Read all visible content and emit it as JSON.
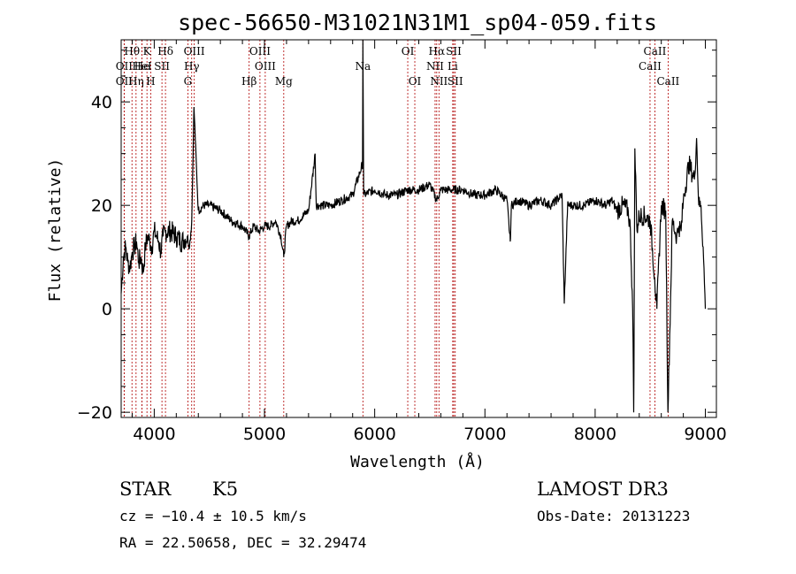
{
  "chart_data": {
    "type": "line",
    "title": "spec-56650-M31021N31M1_sp04-059.fits",
    "xlabel": "Wavelength (Å)",
    "ylabel": "Flux (relative)",
    "xlim": [
      3700,
      9100
    ],
    "ylim": [
      -21,
      52
    ],
    "x_ticks": [
      4000,
      5000,
      6000,
      7000,
      8000,
      9000
    ],
    "y_ticks": [
      -20,
      0,
      20,
      40
    ],
    "grid": false,
    "series": [
      {
        "x": [
          3700,
          3720,
          3740,
          3760,
          3780,
          3800,
          3820,
          3840,
          3860,
          3880,
          3900,
          3920,
          3940,
          3960,
          3980,
          4000,
          4020,
          4040,
          4060,
          4080,
          4100,
          4150,
          4200,
          4250,
          4300,
          4320,
          4340,
          4360,
          4400,
          4450,
          4500,
          4600,
          4700,
          4800,
          4861,
          4900,
          4950,
          5000,
          5050,
          5100,
          5150,
          5175,
          5200,
          5250,
          5300,
          5400,
          5460,
          5470,
          5500,
          5600,
          5700,
          5800,
          5890,
          5893,
          5900,
          6000,
          6100,
          6200,
          6300,
          6400,
          6500,
          6563,
          6600,
          6700,
          6800,
          6900,
          7000,
          7100,
          7200,
          7230,
          7240,
          7300,
          7400,
          7500,
          7600,
          7700,
          7720,
          7750,
          7800,
          7900,
          8000,
          8100,
          8150,
          8200,
          8250,
          8300,
          8320,
          8340,
          8350,
          8360,
          8380,
          8400,
          8450,
          8500,
          8540,
          8560,
          8600,
          8640,
          8660,
          8700,
          8740,
          8760,
          8780,
          8800,
          8850,
          8900,
          8920,
          8940,
          8960,
          8980,
          9000
        ],
        "y": [
          3,
          10,
          12,
          9,
          8,
          11,
          12,
          13,
          9,
          10,
          7,
          12,
          14,
          13,
          12,
          15,
          14,
          13,
          11,
          14,
          15,
          15,
          14,
          13,
          14,
          12,
          17,
          39,
          19,
          20,
          20,
          19,
          17,
          16,
          14,
          16,
          15,
          16,
          16,
          17,
          14,
          10,
          16,
          17,
          17,
          19,
          30,
          20,
          20,
          20,
          21,
          22,
          28,
          52,
          22,
          23,
          22,
          22,
          23,
          23,
          24,
          21,
          23,
          23,
          23,
          22,
          22,
          23,
          21,
          13,
          20,
          21,
          20,
          21,
          20,
          22,
          1,
          20,
          20,
          20,
          21,
          20,
          21,
          19,
          20,
          19,
          15,
          0,
          -20,
          31,
          15,
          18,
          18,
          17,
          6,
          0,
          20,
          19,
          -20,
          17,
          14,
          16,
          15,
          21,
          28,
          25,
          33,
          20,
          20,
          12,
          0
        ]
      }
    ],
    "emission_lines": [
      {
        "label": "Hθ",
        "x": 3798,
        "row": 1
      },
      {
        "label": "OII",
        "x": 3727,
        "row": 2
      },
      {
        "label": "OII",
        "x": 3727,
        "row": 3
      },
      {
        "label": "He",
        "x": 3889,
        "row": 2
      },
      {
        "label": "Hη",
        "x": 3835,
        "row": 3
      },
      {
        "label": "K",
        "x": 3934,
        "row": 1
      },
      {
        "label": "H",
        "x": 3968,
        "row": 3
      },
      {
        "label": "HeI",
        "x": 3889,
        "row": 2
      },
      {
        "label": "SII",
        "x": 4070,
        "row": 2
      },
      {
        "label": "Hδ",
        "x": 4102,
        "row": 1
      },
      {
        "label": "OIII",
        "x": 4363,
        "row": 1
      },
      {
        "label": "Hγ",
        "x": 4340,
        "row": 2
      },
      {
        "label": "G",
        "x": 4305,
        "row": 3
      },
      {
        "label": "OIII",
        "x": 4959,
        "row": 1
      },
      {
        "label": "OIII",
        "x": 5007,
        "row": 2
      },
      {
        "label": "Hβ",
        "x": 4861,
        "row": 3
      },
      {
        "label": "Mg",
        "x": 5175,
        "row": 3
      },
      {
        "label": "Na",
        "x": 5893,
        "row": 2
      },
      {
        "label": "OI",
        "x": 6300,
        "row": 1
      },
      {
        "label": "OI",
        "x": 6364,
        "row": 3
      },
      {
        "label": "Hα",
        "x": 6563,
        "row": 1
      },
      {
        "label": "NII",
        "x": 6548,
        "row": 2
      },
      {
        "label": "NII",
        "x": 6583,
        "row": 3
      },
      {
        "label": "SII",
        "x": 6717,
        "row": 1
      },
      {
        "label": "Li",
        "x": 6708,
        "row": 2
      },
      {
        "label": "SII",
        "x": 6731,
        "row": 3
      },
      {
        "label": "CaII",
        "x": 8542,
        "row": 1
      },
      {
        "label": "CaII",
        "x": 8498,
        "row": 2
      },
      {
        "label": "CaII",
        "x": 8662,
        "row": 3
      }
    ]
  },
  "info": {
    "class_label": "STAR",
    "subclass_label": "K5",
    "survey": "LAMOST DR3",
    "cz": "cz = −10.4 ± 10.5 km/s",
    "obs_date": "Obs-Date: 20131223",
    "radec": "RA =  22.50658, DEC =  32.29474"
  }
}
